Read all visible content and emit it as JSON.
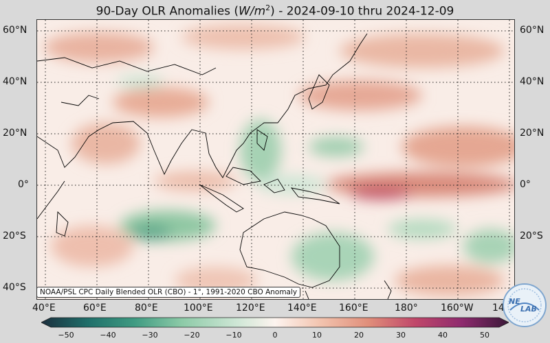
{
  "title": {
    "prefix": "90-Day OLR Anomalies (",
    "unit_italic": "W/m",
    "unit_sup": "2",
    "suffix": ") - 2024-09-10 thru 2024-12-09"
  },
  "map": {
    "lat_labels": [
      "60°N",
      "40°N",
      "20°N",
      "0°",
      "20°S",
      "40°S"
    ],
    "lon_labels": [
      "40°E",
      "60°E",
      "80°E",
      "100°E",
      "120°E",
      "140°E",
      "160°E",
      "180°",
      "160°W",
      "14"
    ],
    "gridlines": "dotted",
    "colormap_negative": "green",
    "colormap_positive": "red-purple"
  },
  "source_note": "NOAA/PSL CPC Daily Blended OLR (CBO) - 1°, 1991-2020 CBO Anomaly",
  "colorbar": {
    "ticks": [
      "−50",
      "−40",
      "−30",
      "−20",
      "−10",
      "0",
      "10",
      "20",
      "30",
      "40",
      "50"
    ],
    "colors": [
      "#1b2f3e",
      "#1f6f6a",
      "#3f9b82",
      "#8ccaa7",
      "#cfe7d6",
      "#fdf4ef",
      "#f2c2ad",
      "#e08e7a",
      "#c0476a",
      "#8e2a6e",
      "#3a1838"
    ]
  },
  "logo": {
    "text_top": "NE",
    "text_bottom": "LAB",
    "icon": "psl-logo-icon"
  }
}
